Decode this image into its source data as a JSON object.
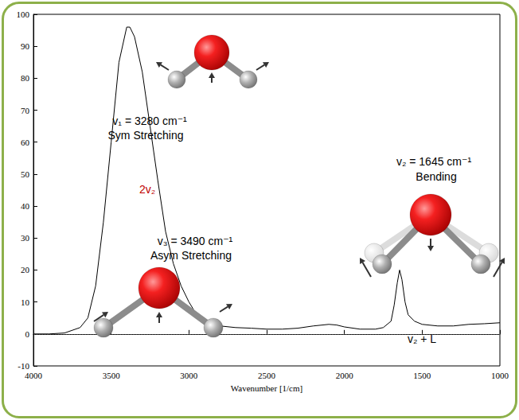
{
  "chart_data": {
    "type": "line",
    "x_label": "Wavenumber [1/cm]",
    "x": [
      4000,
      3900,
      3800,
      3700,
      3650,
      3600,
      3550,
      3500,
      3450,
      3400,
      3380,
      3350,
      3300,
      3250,
      3200,
      3150,
      3100,
      3050,
      3000,
      2950,
      2900,
      2800,
      2700,
      2600,
      2500,
      2400,
      2300,
      2200,
      2100,
      2050,
      2000,
      1900,
      1800,
      1750,
      1700,
      1680,
      1660,
      1645,
      1630,
      1610,
      1590,
      1550,
      1500,
      1400,
      1300,
      1200,
      1100,
      1000
    ],
    "values": [
      0,
      0,
      0.3,
      2,
      5,
      15,
      35,
      60,
      85,
      96,
      96,
      93,
      82,
      65,
      48,
      32,
      22,
      15,
      10,
      6,
      4,
      2.5,
      2,
      1.8,
      1.5,
      1.5,
      1.8,
      2.5,
      3,
      2.8,
      2.2,
      1.5,
      1.5,
      2,
      4,
      9,
      16,
      20,
      17,
      10,
      6,
      4,
      3,
      2.5,
      2.5,
      3,
      3.2,
      3.5
    ],
    "color": "#000000",
    "xlim": [
      4000,
      1000
    ],
    "xticks": [
      4000,
      3500,
      3000,
      2500,
      2000,
      1500,
      1000
    ],
    "ylim": [
      -10,
      100
    ],
    "yticks": [
      -10,
      0,
      10,
      20,
      30,
      40,
      50,
      60,
      70,
      80,
      90,
      100
    ],
    "grid": false,
    "annotations": [
      {
        "text": "v₁ = 3280 cm⁻¹",
        "color": "#000000"
      },
      {
        "text": "Sym Stretching",
        "color": "#000000"
      },
      {
        "text": "2v₂",
        "color": "#c00000"
      },
      {
        "text": "v₃ = 3490 cm⁻¹",
        "color": "#000000"
      },
      {
        "text": "Asym Stretching",
        "color": "#000000"
      },
      {
        "text": "v₂ = 1645 cm⁻¹",
        "color": "#000000"
      },
      {
        "text": "Bending",
        "color": "#000000"
      },
      {
        "text": "v₂ + L",
        "color": "#000000"
      }
    ]
  }
}
